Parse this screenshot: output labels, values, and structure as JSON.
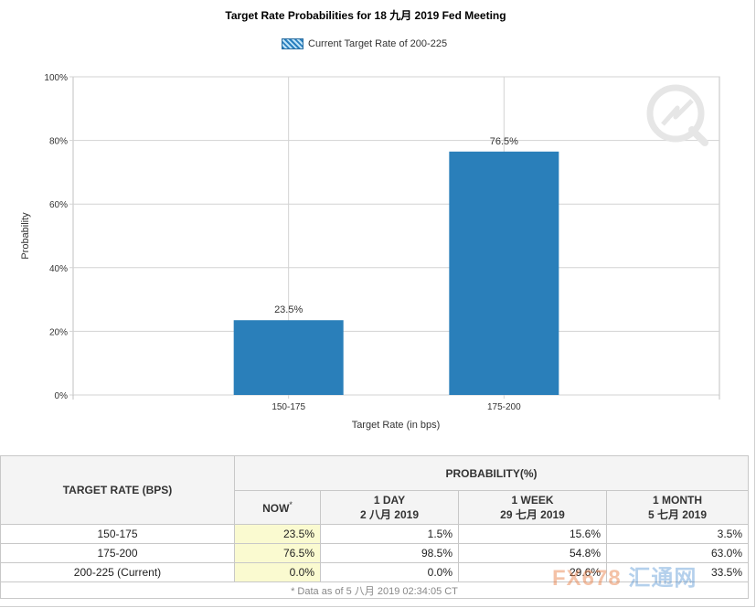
{
  "chart_data": {
    "type": "bar",
    "title": "Target Rate Probabilities for 18 九月 2019  Fed Meeting",
    "legend": "Current Target Rate of 200-225",
    "xlabel": "Target Rate (in bps)",
    "ylabel": "Probability",
    "categories": [
      "150-175",
      "175-200"
    ],
    "values": [
      23.5,
      76.5
    ],
    "value_labels": [
      "23.5%",
      "76.5%"
    ],
    "ylim": [
      0,
      100
    ],
    "yticks": [
      "0%",
      "20%",
      "40%",
      "60%",
      "80%",
      "100%"
    ],
    "grid": true,
    "bar_color": "#2a7fba"
  },
  "table": {
    "col_target": "TARGET RATE (BPS)",
    "col_prob": "PROBABILITY(%)",
    "sub_now": "NOW",
    "sub_now_mark": "*",
    "sub_1day_a": "1 DAY",
    "sub_1day_b": "2 八月 2019",
    "sub_1week_a": "1 WEEK",
    "sub_1week_b": "29 七月 2019",
    "sub_1month_a": "1 MONTH",
    "sub_1month_b": "5 七月 2019",
    "rows": [
      {
        "rate": "150-175",
        "now": "23.5%",
        "d1": "1.5%",
        "w1": "15.6%",
        "m1": "3.5%"
      },
      {
        "rate": "175-200",
        "now": "76.5%",
        "d1": "98.5%",
        "w1": "54.8%",
        "m1": "63.0%"
      },
      {
        "rate": "200-225 (Current)",
        "now": "0.0%",
        "d1": "0.0%",
        "w1": "29.6%",
        "m1": "33.5%"
      }
    ],
    "footnote": "* Data as of 5 八月 2019 02:34:05 CT"
  },
  "watermark": {
    "brand_latin": "FX678",
    "brand_cn": "汇通网"
  }
}
